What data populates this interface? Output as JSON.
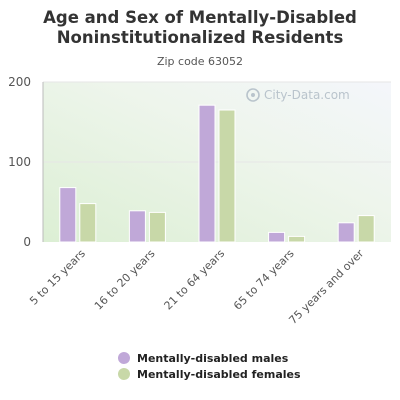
{
  "chart_data": {
    "type": "bar",
    "title": "Age and Sex of Mentally-Disabled Noninstitutionalized Residents",
    "subtitle": "Zip code 63052",
    "categories": [
      "5 to 15 years",
      "16 to 20 years",
      "21 to 64 years",
      "65 to 74 years",
      "75 years and over"
    ],
    "series": [
      {
        "name": "Mentally-disabled males",
        "color": "#c0a8d8",
        "values": [
          68,
          39,
          171,
          12,
          24
        ]
      },
      {
        "name": "Mentally-disabled females",
        "color": "#c8d8a8",
        "values": [
          48,
          37,
          165,
          7,
          33
        ]
      }
    ],
    "ylim": [
      0,
      200
    ],
    "yticks": [
      0,
      100,
      200
    ],
    "grid": true,
    "legend": "bottom",
    "watermark": "City-Data.com"
  }
}
